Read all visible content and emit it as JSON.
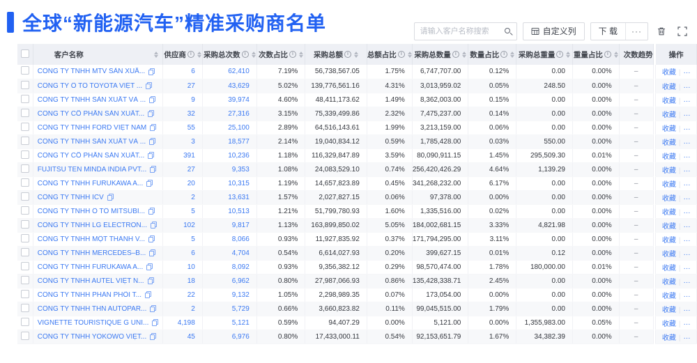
{
  "header": {
    "title": "全球“新能源汽车”精准采购商名单",
    "search_placeholder": "请输入客户名称搜索",
    "customize_columns_label": "自定义列",
    "download_label": "下 载",
    "more_label": "···"
  },
  "table": {
    "columns": [
      {
        "key": "name",
        "label": "客户名称",
        "info": false,
        "sortable": true
      },
      {
        "key": "supplier",
        "label": "供应商",
        "info": true,
        "sortable": true
      },
      {
        "key": "purchases",
        "label": "采购总次数",
        "info": true,
        "sortable": true
      },
      {
        "key": "count_pct",
        "label": "次数占比",
        "info": true,
        "sortable": true
      },
      {
        "key": "amount",
        "label": "采购总额",
        "info": true,
        "sortable": true
      },
      {
        "key": "amount_pct",
        "label": "总额占比",
        "info": true,
        "sortable": true
      },
      {
        "key": "quantity",
        "label": "采购总数量",
        "info": true,
        "sortable": true
      },
      {
        "key": "qty_pct",
        "label": "数量占比",
        "info": true,
        "sortable": true
      },
      {
        "key": "weight",
        "label": "采购总重量",
        "info": true,
        "sortable": true
      },
      {
        "key": "weight_pct",
        "label": "重量占比",
        "info": true,
        "sortable": true
      },
      {
        "key": "trend",
        "label": "次数趋势",
        "info": false,
        "sortable": false
      },
      {
        "key": "ops",
        "label": "操作",
        "info": false,
        "sortable": false
      }
    ],
    "actions": {
      "favorite": "收藏",
      "more": "···"
    },
    "trend_placeholder": "–",
    "rows": [
      {
        "name": "CÔNG TY TNHH MTV SẢN XUẤ...",
        "supplier": "6",
        "purchases": "62,410",
        "count_pct": "7.19%",
        "amount": "56,738,567.05",
        "amount_pct": "1.75%",
        "quantity": "6,747,707.00",
        "qty_pct": "0.12%",
        "weight": "0.00",
        "weight_pct": "0.00%"
      },
      {
        "name": "CÔNG TY Ô TÔ TOYOTA VIỆT ...",
        "supplier": "27",
        "purchases": "43,629",
        "count_pct": "5.02%",
        "amount": "139,776,561.16",
        "amount_pct": "4.31%",
        "quantity": "3,013,959.02",
        "qty_pct": "0.05%",
        "weight": "248.50",
        "weight_pct": "0.00%"
      },
      {
        "name": "CÔNG TY TNHH SẢN XUẤT VÀ ...",
        "supplier": "9",
        "purchases": "39,974",
        "count_pct": "4.60%",
        "amount": "48,411,173.62",
        "amount_pct": "1.49%",
        "quantity": "8,362,003.00",
        "qty_pct": "0.15%",
        "weight": "0.00",
        "weight_pct": "0.00%"
      },
      {
        "name": "CÔNG TY CỔ PHẦN SẢN XUẤT...",
        "supplier": "32",
        "purchases": "27,316",
        "count_pct": "3.15%",
        "amount": "75,339,499.86",
        "amount_pct": "2.32%",
        "quantity": "7,475,237.00",
        "qty_pct": "0.14%",
        "weight": "0.00",
        "weight_pct": "0.00%"
      },
      {
        "name": "CÔNG TY TNHH FORD VIỆT NAM",
        "supplier": "55",
        "purchases": "25,100",
        "count_pct": "2.89%",
        "amount": "64,516,143.61",
        "amount_pct": "1.99%",
        "quantity": "3,213,159.00",
        "qty_pct": "0.06%",
        "weight": "0.00",
        "weight_pct": "0.00%"
      },
      {
        "name": "CÔNG TY TNHH SẢN XUẤT VÀ ...",
        "supplier": "3",
        "purchases": "18,577",
        "count_pct": "2.14%",
        "amount": "19,040,834.12",
        "amount_pct": "0.59%",
        "quantity": "1,785,428.00",
        "qty_pct": "0.03%",
        "weight": "550.00",
        "weight_pct": "0.00%"
      },
      {
        "name": "CÔNG TY CỔ PHẦN SẢN XUẤT...",
        "supplier": "391",
        "purchases": "10,236",
        "count_pct": "1.18%",
        "amount": "116,329,847.89",
        "amount_pct": "3.59%",
        "quantity": "80,090,911.15",
        "qty_pct": "1.45%",
        "weight": "295,509.30",
        "weight_pct": "0.01%"
      },
      {
        "name": "FUJITSU TEN MINDA INDIA PVT...",
        "supplier": "27",
        "purchases": "9,353",
        "count_pct": "1.08%",
        "amount": "24,083,529.10",
        "amount_pct": "0.74%",
        "quantity": "256,420,426.29",
        "qty_pct": "4.64%",
        "weight": "1,139.29",
        "weight_pct": "0.00%"
      },
      {
        "name": "CÔNG TY TNHH FURUKAWA A...",
        "supplier": "20",
        "purchases": "10,315",
        "count_pct": "1.19%",
        "amount": "14,657,823.89",
        "amount_pct": "0.45%",
        "quantity": "341,268,232.00",
        "qty_pct": "6.17%",
        "weight": "0.00",
        "weight_pct": "0.00%"
      },
      {
        "name": "CÔNG TY TNHH ICV",
        "supplier": "2",
        "purchases": "13,631",
        "count_pct": "1.57%",
        "amount": "2,027,827.15",
        "amount_pct": "0.06%",
        "quantity": "97,378.00",
        "qty_pct": "0.00%",
        "weight": "0.00",
        "weight_pct": "0.00%"
      },
      {
        "name": "CÔNG TY TNHH Ô TÔ MITSUBI...",
        "supplier": "5",
        "purchases": "10,513",
        "count_pct": "1.21%",
        "amount": "51,799,780.93",
        "amount_pct": "1.60%",
        "quantity": "1,335,516.00",
        "qty_pct": "0.02%",
        "weight": "0.00",
        "weight_pct": "0.00%"
      },
      {
        "name": "CÔNG TY TNHH LG ELECTRON...",
        "supplier": "102",
        "purchases": "9,817",
        "count_pct": "1.13%",
        "amount": "163,899,850.02",
        "amount_pct": "5.05%",
        "quantity": "184,002,681.15",
        "qty_pct": "3.33%",
        "weight": "4,821.98",
        "weight_pct": "0.00%"
      },
      {
        "name": "CÔNG TY TNHH MỘT THÀNH V...",
        "supplier": "5",
        "purchases": "8,066",
        "count_pct": "0.93%",
        "amount": "11,927,835.92",
        "amount_pct": "0.37%",
        "quantity": "171,794,295.00",
        "qty_pct": "3.11%",
        "weight": "0.00",
        "weight_pct": "0.00%"
      },
      {
        "name": "CÔNG TY TNHH MERCEDES–B...",
        "supplier": "6",
        "purchases": "4,704",
        "count_pct": "0.54%",
        "amount": "6,614,027.93",
        "amount_pct": "0.20%",
        "quantity": "399,627.15",
        "qty_pct": "0.01%",
        "weight": "0.12",
        "weight_pct": "0.00%"
      },
      {
        "name": "CÔNG TY TNHH FURUKAWA A...",
        "supplier": "10",
        "purchases": "8,092",
        "count_pct": "0.93%",
        "amount": "9,356,382.12",
        "amount_pct": "0.29%",
        "quantity": "98,570,474.00",
        "qty_pct": "1.78%",
        "weight": "180,000.00",
        "weight_pct": "0.01%"
      },
      {
        "name": "CÔNG TY TNHH AUTEL VIỆT N...",
        "supplier": "18",
        "purchases": "6,962",
        "count_pct": "0.80%",
        "amount": "27,987,066.93",
        "amount_pct": "0.86%",
        "quantity": "135,428,338.71",
        "qty_pct": "2.45%",
        "weight": "0.00",
        "weight_pct": "0.00%"
      },
      {
        "name": "CÔNG TY TNHH PHÂN PHỐI T...",
        "supplier": "22",
        "purchases": "9,132",
        "count_pct": "1.05%",
        "amount": "2,298,989.35",
        "amount_pct": "0.07%",
        "quantity": "173,054.00",
        "qty_pct": "0.00%",
        "weight": "0.00",
        "weight_pct": "0.00%"
      },
      {
        "name": "CÔNG TY TNHH THN AUTOPAR...",
        "supplier": "2",
        "purchases": "5,729",
        "count_pct": "0.66%",
        "amount": "3,660,823.82",
        "amount_pct": "0.11%",
        "quantity": "99,045,515.00",
        "qty_pct": "1.79%",
        "weight": "0.00",
        "weight_pct": "0.00%"
      },
      {
        "name": "VIGNETTE TOURISTIQUE G UNI...",
        "supplier": "4,198",
        "purchases": "5,121",
        "count_pct": "0.59%",
        "amount": "94,407.29",
        "amount_pct": "0.00%",
        "quantity": "5,121.00",
        "qty_pct": "0.00%",
        "weight": "1,355,983.00",
        "weight_pct": "0.05%"
      },
      {
        "name": "CÔNG TY TNHH YOKOWO VIỆT...",
        "supplier": "45",
        "purchases": "6,976",
        "count_pct": "0.80%",
        "amount": "17,433,000.11",
        "amount_pct": "0.54%",
        "quantity": "92,153,651.79",
        "qty_pct": "1.67%",
        "weight": "34,382.39",
        "weight_pct": "0.00%"
      }
    ]
  }
}
